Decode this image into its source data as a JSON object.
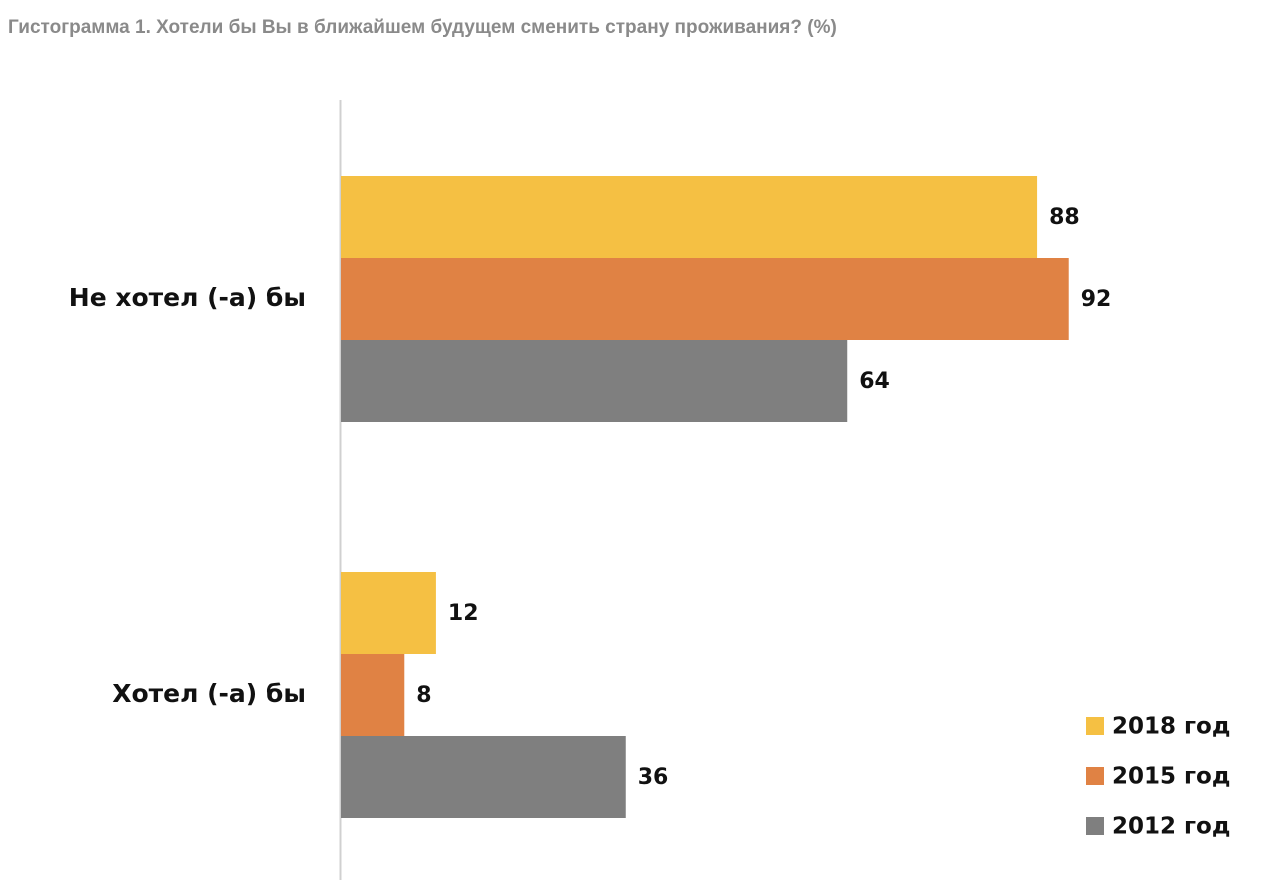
{
  "chart_data": {
    "type": "bar",
    "orientation": "horizontal",
    "title": "Гистограмма 1. Хотели бы Вы в ближайшем будущем сменить страну проживания? (%)",
    "categories": [
      "Не хотел (-а) бы",
      "Хотел (-а) бы"
    ],
    "series": [
      {
        "name": "2018 год",
        "color": "#f5c043",
        "values": [
          88,
          12
        ]
      },
      {
        "name": "2015 год",
        "color": "#e08244",
        "values": [
          92,
          8
        ]
      },
      {
        "name": "2012 год",
        "color": "#7f7f7f",
        "values": [
          64,
          36
        ]
      }
    ],
    "legend": "bottom-right"
  }
}
